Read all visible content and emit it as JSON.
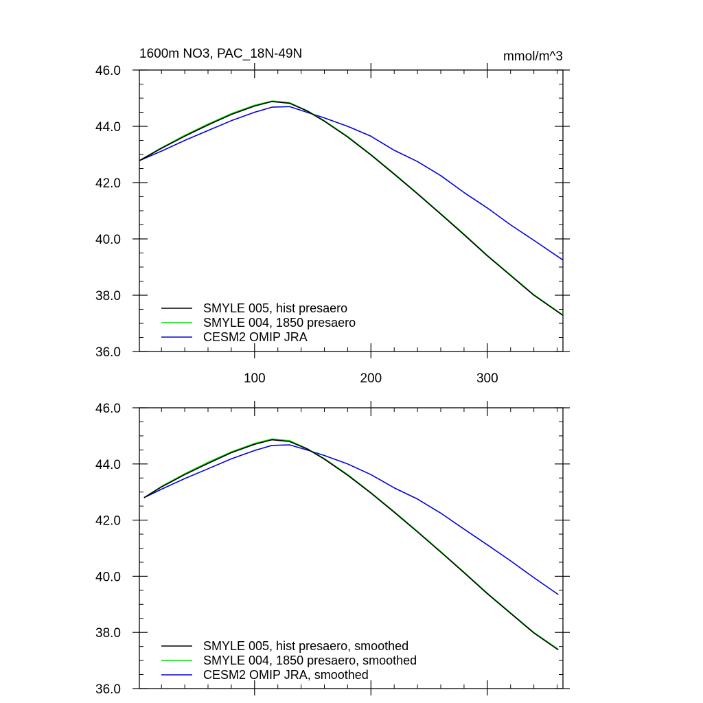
{
  "figure": {
    "title_left": "1600m NO3, PAC_18N-49N",
    "title_right": "mmol/m^3"
  },
  "chart_data": [
    {
      "type": "line",
      "title": "1600m NO3, PAC_18N-49N",
      "units": "mmol/m^3",
      "xlim": [
        1,
        365
      ],
      "ylim": [
        36.0,
        46.0
      ],
      "x_ticks": [
        100,
        200,
        300
      ],
      "x_tick_labels": [
        "100",
        "200",
        "300"
      ],
      "y_ticks": [
        36,
        38,
        40,
        42,
        44,
        46
      ],
      "y_tick_labels": [
        "36.0",
        "38.0",
        "40.0",
        "42.0",
        "44.0",
        "46.0"
      ],
      "grid": false,
      "legend_position": "bottom-left",
      "x": [
        1,
        20,
        40,
        60,
        80,
        100,
        115,
        130,
        145,
        160,
        180,
        200,
        220,
        240,
        260,
        280,
        300,
        320,
        340,
        365
      ],
      "series": [
        {
          "name": "SMYLE 005, hist presaero",
          "color": "#000000",
          "values": [
            42.78,
            43.22,
            43.65,
            44.05,
            44.42,
            44.72,
            44.88,
            44.82,
            44.55,
            44.18,
            43.62,
            42.98,
            42.3,
            41.6,
            40.88,
            40.15,
            39.4,
            38.7,
            38.0,
            37.28
          ]
        },
        {
          "name": "SMYLE 004, 1850 presaero",
          "color": "#00dd00",
          "values": [
            42.78,
            43.24,
            43.68,
            44.08,
            44.45,
            44.75,
            44.9,
            44.84,
            44.56,
            44.2,
            43.64,
            43.0,
            42.32,
            41.62,
            40.9,
            40.17,
            39.42,
            38.72,
            38.02,
            37.3
          ]
        },
        {
          "name": "CESM2 OMIP JRA",
          "color": "#0000dd",
          "values": [
            42.78,
            43.12,
            43.5,
            43.85,
            44.2,
            44.5,
            44.68,
            44.7,
            44.5,
            44.3,
            44.0,
            43.65,
            43.15,
            42.75,
            42.25,
            41.65,
            41.1,
            40.5,
            39.95,
            39.25
          ]
        }
      ]
    },
    {
      "type": "line",
      "xlim": [
        1,
        365
      ],
      "ylim": [
        36.0,
        46.0
      ],
      "x_ticks": [
        100,
        200,
        300
      ],
      "x_tick_labels": [],
      "y_ticks": [
        36,
        38,
        40,
        42,
        44,
        46
      ],
      "y_tick_labels": [
        "36.0",
        "38.0",
        "40.0",
        "42.0",
        "44.0",
        "46.0"
      ],
      "grid": false,
      "legend_position": "bottom-left",
      "x": [
        5,
        20,
        40,
        60,
        80,
        100,
        115,
        130,
        145,
        160,
        180,
        200,
        220,
        240,
        260,
        280,
        300,
        320,
        340,
        361
      ],
      "series": [
        {
          "name": "SMYLE 005, hist presaero, smoothed",
          "color": "#000000",
          "values": [
            42.8,
            43.18,
            43.62,
            44.02,
            44.4,
            44.7,
            44.86,
            44.8,
            44.54,
            44.17,
            43.6,
            42.96,
            42.28,
            41.58,
            40.86,
            40.13,
            39.38,
            38.68,
            37.98,
            37.38
          ]
        },
        {
          "name": "SMYLE 004, 1850 presaero, smoothed",
          "color": "#00dd00",
          "values": [
            42.8,
            43.2,
            43.65,
            44.06,
            44.43,
            44.73,
            44.89,
            44.83,
            44.55,
            44.19,
            43.62,
            42.98,
            42.3,
            41.6,
            40.88,
            40.15,
            39.4,
            38.7,
            38.0,
            37.4
          ]
        },
        {
          "name": "CESM2 OMIP JRA, smoothed",
          "color": "#0000dd",
          "values": [
            42.8,
            43.1,
            43.48,
            43.83,
            44.18,
            44.48,
            44.66,
            44.68,
            44.5,
            44.3,
            44.0,
            43.62,
            43.15,
            42.75,
            42.25,
            41.68,
            41.12,
            40.55,
            39.95,
            39.35
          ]
        }
      ]
    }
  ]
}
